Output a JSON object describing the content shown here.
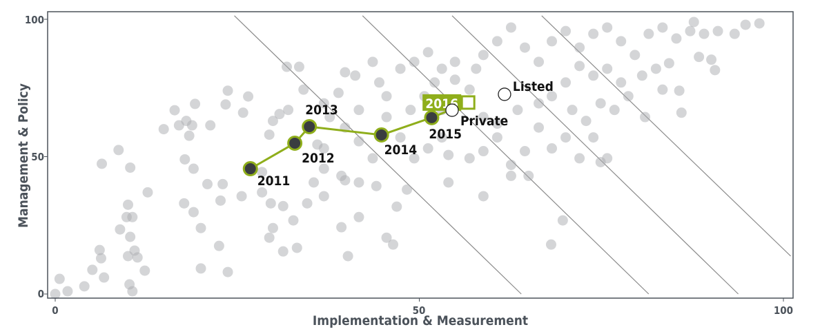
{
  "chart_data": {
    "type": "scatter",
    "xlabel": "Implementation & Measurement",
    "ylabel": "Management & Policy",
    "xlim": [
      0,
      100
    ],
    "ylim": [
      0,
      100
    ],
    "xticks": [
      "0",
      "50",
      "100"
    ],
    "yticks": [
      "0",
      "50",
      "100"
    ],
    "grid": false,
    "colors": {
      "background_points": "#a9acb0",
      "trajectory": "#8fae1b",
      "trajectory_points": "#3a3d40",
      "axis": "#4b525a",
      "reference_lines": "#8a8a8a"
    },
    "reference_lines": [
      [
        [
          24.6,
          101.3
        ],
        [
          64,
          0
        ]
      ],
      [
        [
          42.2,
          101.3
        ],
        [
          81.5,
          0
        ]
      ],
      [
        [
          54.5,
          101.3
        ],
        [
          93.8,
          0
        ]
      ],
      [
        [
          66.8,
          101.3
        ],
        [
          101,
          13.8
        ]
      ]
    ],
    "background_points": [
      [
        0,
        0
      ],
      [
        0.6,
        5.5
      ],
      [
        1.7,
        1
      ],
      [
        4,
        2.8
      ],
      [
        5.1,
        8.8
      ],
      [
        6.1,
        16
      ],
      [
        6.3,
        13
      ],
      [
        6.7,
        6
      ],
      [
        6.4,
        47.4
      ],
      [
        8.7,
        52.4
      ],
      [
        10.3,
        46
      ],
      [
        8.9,
        23.5
      ],
      [
        10,
        32.5
      ],
      [
        9.8,
        28
      ],
      [
        10.6,
        28
      ],
      [
        10.3,
        20.8
      ],
      [
        10.9,
        15.8
      ],
      [
        10,
        13.8
      ],
      [
        11.3,
        13.3
      ],
      [
        12.3,
        8.5
      ],
      [
        10.2,
        3.5
      ],
      [
        10.6,
        1
      ],
      [
        12.7,
        37
      ],
      [
        14.9,
        60
      ],
      [
        16.4,
        66.9
      ],
      [
        17,
        61.4
      ],
      [
        18.8,
        61.4
      ],
      [
        18.4,
        57.6
      ],
      [
        19.2,
        69.2
      ],
      [
        17.8,
        49
      ],
      [
        19,
        45.6
      ],
      [
        17.7,
        33
      ],
      [
        19,
        29.8
      ],
      [
        20,
        24
      ],
      [
        20,
        9.3
      ],
      [
        20.9,
        40
      ],
      [
        23,
        40
      ],
      [
        22.7,
        34
      ],
      [
        22.5,
        17.5
      ],
      [
        23.7,
        8
      ],
      [
        23.4,
        69
      ],
      [
        23.7,
        74
      ],
      [
        25.8,
        66
      ],
      [
        29.9,
        63
      ],
      [
        30.8,
        65.5
      ],
      [
        32,
        67
      ],
      [
        29.4,
        58
      ],
      [
        28.4,
        37
      ],
      [
        29.6,
        33
      ],
      [
        31.3,
        32
      ],
      [
        29.9,
        24
      ],
      [
        29.4,
        20.5
      ],
      [
        31.3,
        15.5
      ],
      [
        33.2,
        16.8
      ],
      [
        31.8,
        82.7
      ],
      [
        33.5,
        82.7
      ],
      [
        34.1,
        74.4
      ],
      [
        36.9,
        69.4
      ],
      [
        38.9,
        73.2
      ],
      [
        39.8,
        80.7
      ],
      [
        41.2,
        79.5
      ],
      [
        37.7,
        64.4
      ],
      [
        36,
        54.4
      ],
      [
        36.9,
        45.6
      ],
      [
        39.3,
        43
      ],
      [
        39.8,
        41.4
      ],
      [
        41.7,
        40.6
      ],
      [
        36.9,
        35.6
      ],
      [
        39.3,
        24.3
      ],
      [
        40.2,
        13.8
      ],
      [
        41.7,
        28
      ],
      [
        44.1,
        39.3
      ],
      [
        45.5,
        20.5
      ],
      [
        46.4,
        18
      ],
      [
        46.9,
        31.8
      ],
      [
        48.3,
        38
      ],
      [
        43.6,
        84.5
      ],
      [
        44.5,
        77
      ],
      [
        45.5,
        72
      ],
      [
        47.4,
        82
      ],
      [
        49.3,
        84.5
      ],
      [
        51.2,
        88
      ],
      [
        53.1,
        82
      ],
      [
        54.9,
        78
      ],
      [
        48.8,
        67
      ],
      [
        47.4,
        57
      ],
      [
        49.3,
        49.4
      ],
      [
        51.2,
        53
      ],
      [
        53.1,
        57
      ],
      [
        54,
        40.6
      ],
      [
        58.8,
        35.6
      ],
      [
        54,
        50.6
      ],
      [
        56.9,
        49.4
      ],
      [
        58.8,
        52
      ],
      [
        60.7,
        57
      ],
      [
        62.6,
        47
      ],
      [
        65,
        43
      ],
      [
        62.6,
        43
      ],
      [
        64.5,
        52
      ],
      [
        66.4,
        60.6
      ],
      [
        68.2,
        53
      ],
      [
        70.1,
        57
      ],
      [
        72,
        49.4
      ],
      [
        73.9,
        57
      ],
      [
        69.7,
        26.8
      ],
      [
        68.1,
        18
      ],
      [
        74.9,
        48
      ],
      [
        75.8,
        49.4
      ],
      [
        58.8,
        64.4
      ],
      [
        60.7,
        62
      ],
      [
        63.5,
        67
      ],
      [
        66.4,
        69.4
      ],
      [
        68.2,
        72
      ],
      [
        71,
        67
      ],
      [
        72.9,
        63
      ],
      [
        74.9,
        69.4
      ],
      [
        76.8,
        67
      ],
      [
        78.7,
        72
      ],
      [
        81,
        64.4
      ],
      [
        83.4,
        74.4
      ],
      [
        85.7,
        74
      ],
      [
        86,
        66
      ],
      [
        57.8,
        82
      ],
      [
        58.8,
        87
      ],
      [
        60.7,
        92
      ],
      [
        62.6,
        97
      ],
      [
        64.5,
        89.7
      ],
      [
        66.4,
        84.5
      ],
      [
        68.2,
        92
      ],
      [
        70.1,
        95.7
      ],
      [
        72,
        89.7
      ],
      [
        73.9,
        94.7
      ],
      [
        75.8,
        97
      ],
      [
        77.7,
        92
      ],
      [
        79.6,
        87
      ],
      [
        81.5,
        94.7
      ],
      [
        83.4,
        97
      ],
      [
        85.3,
        93
      ],
      [
        87.2,
        95.7
      ],
      [
        87.7,
        99
      ],
      [
        89.1,
        94.7
      ],
      [
        91,
        95.7
      ],
      [
        93.3,
        94.7
      ],
      [
        94.8,
        98
      ],
      [
        96.7,
        98.5
      ],
      [
        90.1,
        85.3
      ],
      [
        90.6,
        81.5
      ],
      [
        88.4,
        86.3
      ],
      [
        84.3,
        84
      ],
      [
        82.5,
        82
      ],
      [
        80.6,
        79.5
      ],
      [
        77.7,
        77
      ],
      [
        75.8,
        82
      ],
      [
        73.9,
        79.5
      ],
      [
        72,
        83
      ],
      [
        70.1,
        77
      ],
      [
        56.9,
        74.4
      ],
      [
        54.9,
        84.5
      ],
      [
        52.1,
        77
      ],
      [
        50.7,
        72
      ],
      [
        53.1,
        67
      ],
      [
        45.5,
        64.4
      ],
      [
        41.7,
        67
      ],
      [
        39.8,
        60.6
      ],
      [
        41.7,
        55.6
      ],
      [
        43.6,
        49.4
      ],
      [
        36.9,
        53
      ],
      [
        35.5,
        40.6
      ],
      [
        34.6,
        33
      ],
      [
        32.7,
        26.8
      ],
      [
        28.4,
        44.4
      ],
      [
        25.6,
        35.6
      ],
      [
        18,
        63
      ],
      [
        21.3,
        61.4
      ],
      [
        26.5,
        71.9
      ]
    ],
    "trajectory": [
      {
        "label": "2011",
        "x": 26.8,
        "y": 45.6
      },
      {
        "label": "2012",
        "x": 32.9,
        "y": 54.9
      },
      {
        "label": "2013",
        "x": 34.9,
        "y": 60.9
      },
      {
        "label": "2014",
        "x": 44.8,
        "y": 57.9
      },
      {
        "label": "2015",
        "x": 51.7,
        "y": 64.2
      },
      {
        "label": "2016",
        "x": 56.7,
        "y": 69.7
      }
    ],
    "benchmarks": [
      {
        "label": "Private",
        "x": 54.5,
        "y": 66.9
      },
      {
        "label": "Listed",
        "x": 61.7,
        "y": 72.7
      }
    ]
  }
}
